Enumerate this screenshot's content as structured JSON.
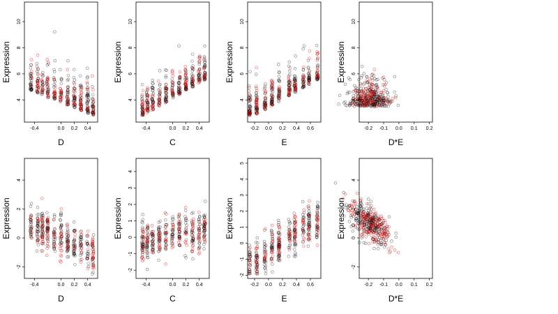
{
  "figure": {
    "background": "#ffffff",
    "layout": "2 rows x 4 columns"
  },
  "chart_data": [
    {
      "type": "scatter",
      "row": 0,
      "col": 0,
      "title": "",
      "xlabel": "D",
      "ylabel": "Expression",
      "xlim": [
        -0.55,
        0.55
      ],
      "ylim": [
        2.3,
        11.5
      ],
      "xticks": [
        -0.4,
        0.0,
        0.2,
        0.4
      ],
      "yticks": [
        4,
        6,
        8,
        10
      ],
      "colors": [
        "#000000",
        "#ff0000"
      ],
      "trend": "decreasing",
      "x_levels": [
        -0.45,
        -0.35,
        -0.28,
        -0.2,
        -0.1,
        0.0,
        0.1,
        0.2,
        0.3,
        0.4,
        0.48
      ]
    },
    {
      "type": "scatter",
      "row": 0,
      "col": 1,
      "title": "",
      "xlabel": "C",
      "ylabel": "Expression",
      "xlim": [
        -0.55,
        0.55
      ],
      "ylim": [
        2.3,
        11.5
      ],
      "xticks": [
        -0.4,
        0.0,
        0.2,
        0.4
      ],
      "yticks": [
        4,
        6,
        8,
        10
      ],
      "colors": [
        "#000000",
        "#ff0000"
      ],
      "trend": "increasing",
      "x_levels": [
        -0.45,
        -0.38,
        -0.3,
        -0.2,
        -0.1,
        0.0,
        0.1,
        0.2,
        0.3,
        0.4,
        0.48
      ]
    },
    {
      "type": "scatter",
      "row": 0,
      "col": 2,
      "title": "",
      "xlabel": "E",
      "ylabel": "Expression",
      "xlim": [
        -0.3,
        0.75
      ],
      "ylim": [
        2.3,
        11.5
      ],
      "xticks": [
        -0.2,
        0.0,
        0.2,
        0.4,
        0.6
      ],
      "yticks": [
        4,
        6,
        8,
        10
      ],
      "colors": [
        "#000000",
        "#ff0000"
      ],
      "trend": "increasing",
      "x_levels": [
        -0.27,
        -0.17,
        -0.05,
        0.05,
        0.15,
        0.3,
        0.38,
        0.5,
        0.58,
        0.7
      ]
    },
    {
      "type": "scatter",
      "row": 0,
      "col": 3,
      "title": "",
      "xlabel": "D*E",
      "ylabel": "Expression",
      "xlim": [
        -0.26,
        0.22
      ],
      "ylim": [
        2.3,
        11.5
      ],
      "xticks": [
        -0.2,
        -0.1,
        0.0,
        0.1,
        0.2
      ],
      "yticks": [
        4,
        6,
        8,
        10
      ],
      "colors": [
        "#000000",
        "#ff0000"
      ],
      "trend": "flat",
      "x_levels": []
    },
    {
      "type": "scatter",
      "row": 1,
      "col": 0,
      "title": "",
      "xlabel": "D",
      "ylabel": "Expression",
      "xlim": [
        -0.55,
        0.55
      ],
      "ylim": [
        -2.8,
        5.5
      ],
      "xticks": [
        -0.4,
        0.0,
        0.2,
        0.4
      ],
      "yticks": [
        -2,
        0,
        2,
        4
      ],
      "colors": [
        "#000000",
        "#ff0000"
      ],
      "trend": "decreasing",
      "x_levels": [
        -0.45,
        -0.35,
        -0.28,
        -0.2,
        -0.1,
        0.0,
        0.1,
        0.2,
        0.3,
        0.4,
        0.48
      ]
    },
    {
      "type": "scatter",
      "row": 1,
      "col": 1,
      "title": "",
      "xlabel": "C",
      "ylabel": "Expression",
      "xlim": [
        -0.55,
        0.55
      ],
      "ylim": [
        -2.5,
        4.8
      ],
      "xticks": [
        -0.4,
        0.0,
        0.2,
        0.4
      ],
      "yticks": [
        -2,
        -1,
        0,
        1,
        2,
        3,
        4
      ],
      "colors": [
        "#000000",
        "#ff0000"
      ],
      "trend": "slightly increasing",
      "x_levels": [
        -0.45,
        -0.38,
        -0.3,
        -0.2,
        -0.1,
        0.0,
        0.1,
        0.2,
        0.3,
        0.4,
        0.48
      ]
    },
    {
      "type": "scatter",
      "row": 1,
      "col": 2,
      "title": "",
      "xlabel": "E",
      "ylabel": "Expression",
      "xlim": [
        -0.3,
        0.75
      ],
      "ylim": [
        -2.2,
        5.3
      ],
      "xticks": [
        -0.2,
        0.0,
        0.2,
        0.4,
        0.6
      ],
      "yticks": [
        -2,
        -1,
        0,
        1,
        2,
        3,
        4,
        5
      ],
      "colors": [
        "#000000",
        "#ff0000"
      ],
      "trend": "increasing",
      "x_levels": [
        -0.27,
        -0.17,
        -0.05,
        0.05,
        0.15,
        0.3,
        0.38,
        0.5,
        0.58,
        0.7
      ]
    },
    {
      "type": "scatter",
      "row": 1,
      "col": 3,
      "title": "",
      "xlabel": "D*E",
      "ylabel": "Expression",
      "xlim": [
        -0.26,
        0.22
      ],
      "ylim": [
        -2.8,
        5.5
      ],
      "xticks": [
        -0.2,
        -0.1,
        0.0,
        0.1,
        0.2
      ],
      "yticks": [
        -2,
        0,
        2,
        4
      ],
      "colors": [
        "#000000",
        "#ff0000"
      ],
      "trend": "decreasing",
      "x_levels": []
    }
  ]
}
